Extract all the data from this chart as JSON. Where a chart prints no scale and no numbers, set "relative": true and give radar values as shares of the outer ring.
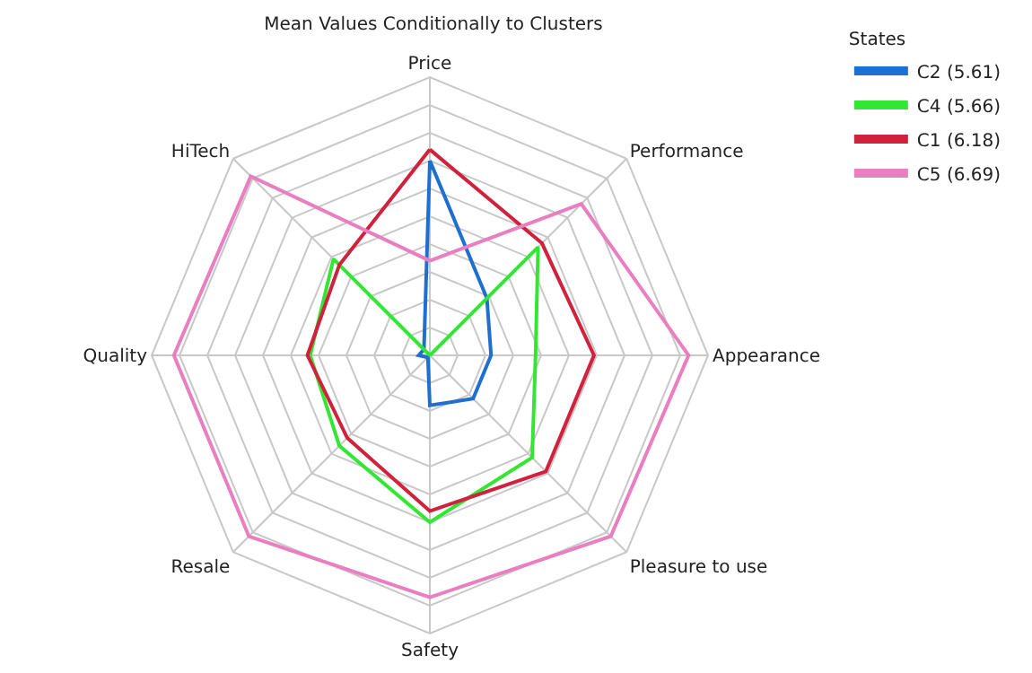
{
  "chart_data": {
    "type": "radar",
    "title": "Mean Values Conditionally to Clusters",
    "legend_title": "States",
    "legend": "top right",
    "relative": true,
    "grid": true,
    "categories": [
      "Price",
      "Performance",
      "Appearance",
      "Pleasure to use",
      "Safety",
      "Resale",
      "Quality",
      "HiTech"
    ],
    "series": [
      {
        "name": "C2 (5.61)",
        "color": "#1f6fd1",
        "values": [
          0.7,
          0.29,
          0.22,
          0.22,
          0.18,
          0.01,
          0.04,
          0.03
        ]
      },
      {
        "name": "C4 (5.66)",
        "color": "#33e633",
        "values": [
          0.0,
          0.55,
          0.38,
          0.52,
          0.6,
          0.46,
          0.43,
          0.49
        ]
      },
      {
        "name": "C1 (6.18)",
        "color": "#d0213d",
        "values": [
          0.74,
          0.57,
          0.59,
          0.59,
          0.56,
          0.42,
          0.44,
          0.46
        ]
      },
      {
        "name": "C5 (6.69)",
        "color": "#e97ec0",
        "values": [
          0.34,
          0.77,
          0.93,
          0.92,
          0.87,
          0.92,
          0.92,
          0.91
        ]
      }
    ]
  }
}
